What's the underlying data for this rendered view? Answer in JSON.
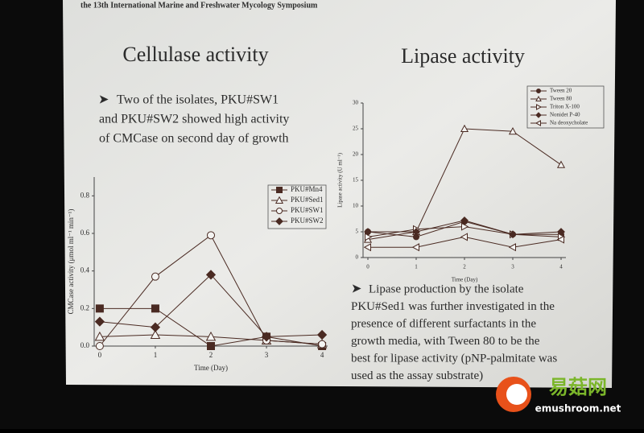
{
  "header": "the 13th International Marine and Freshwater Mycology Symposium",
  "bullets": [
    {
      "lines": [
        "Two of the isolates, PKU#SW1",
        "and PKU#SW2 showed high activity",
        "of CMCase on second day of growth"
      ]
    },
    {
      "lines": [
        "Lipase production by the isolate",
        "PKU#Sed1 was further investigated in the",
        "presence of different surfactants in the",
        "growth media, with Tween 80 to be the",
        "best for lipase activity (pNP-palmitate was",
        "used as the assay substrate)"
      ]
    }
  ],
  "watermark": {
    "brand": "易菇网",
    "url": "emushroom.net"
  },
  "chart_data": [
    {
      "type": "line",
      "title": "Cellulase activity",
      "x_label": "Time (Day)",
      "y_label": "CMCase activity (μmol ml⁻¹ min⁻¹)",
      "x": [
        0,
        1,
        2,
        3,
        4
      ],
      "xlim": [
        -0.1,
        4.1
      ],
      "xticks": [
        0,
        1,
        2,
        3,
        4
      ],
      "ylim": [
        0,
        0.9
      ],
      "yticks": [
        {
          "value": 0,
          "label": "0.0"
        },
        0.2,
        0.4,
        0.6,
        0.8
      ],
      "series": [
        {
          "name": "PKU#Mn4",
          "color": "#4a2a22",
          "marker": "square",
          "filled": true,
          "values": [
            0.2,
            0.2,
            0.0,
            0.05,
            0.0
          ]
        },
        {
          "name": "PKU#Sed1",
          "color": "#4a2a22",
          "marker": "triangle-up",
          "filled": false,
          "values": [
            0.05,
            0.06,
            0.05,
            0.03,
            0.01
          ]
        },
        {
          "name": "PKU#SW1",
          "color": "#4a2a22",
          "marker": "circle",
          "filled": false,
          "values": [
            0.0,
            0.37,
            0.59,
            0.03,
            0.01
          ]
        },
        {
          "name": "PKU#SW2",
          "color": "#4a2a22",
          "marker": "diamond",
          "filled": true,
          "values": [
            0.13,
            0.1,
            0.38,
            0.05,
            0.06
          ]
        }
      ]
    },
    {
      "type": "line",
      "title": "Lipase activity",
      "x_label": "Time (Day)",
      "y_label": "Lipase activity (U ml⁻¹)",
      "x": [
        0,
        1,
        2,
        3,
        4
      ],
      "xlim": [
        -0.1,
        4.1
      ],
      "xticks": [
        0,
        1,
        2,
        3,
        4
      ],
      "ylim": [
        0,
        30
      ],
      "yticks": [
        0,
        5,
        10,
        15,
        20,
        25,
        30
      ],
      "series": [
        {
          "name": "Tween 20",
          "color": "#4a2a22",
          "marker": "circle",
          "filled": true,
          "values": [
            5,
            4,
            7,
            4.5,
            4.5
          ]
        },
        {
          "name": "Tween 80",
          "color": "#4a2a22",
          "marker": "triangle-up",
          "filled": false,
          "values": [
            3.5,
            5,
            25,
            24.5,
            18
          ]
        },
        {
          "name": "Triton X-100",
          "color": "#4a2a22",
          "marker": "triangle-right",
          "filled": false,
          "values": [
            4,
            5.5,
            6,
            4.5,
            4
          ]
        },
        {
          "name": "Nonidet P-40",
          "color": "#4a2a22",
          "marker": "diamond",
          "filled": true,
          "values": [
            5,
            5,
            7.2,
            4.5,
            5
          ]
        },
        {
          "name": "Na deoxycholate",
          "color": "#4a2a22",
          "marker": "triangle-left",
          "filled": false,
          "values": [
            2,
            2,
            4,
            2,
            3.5
          ]
        }
      ]
    }
  ]
}
